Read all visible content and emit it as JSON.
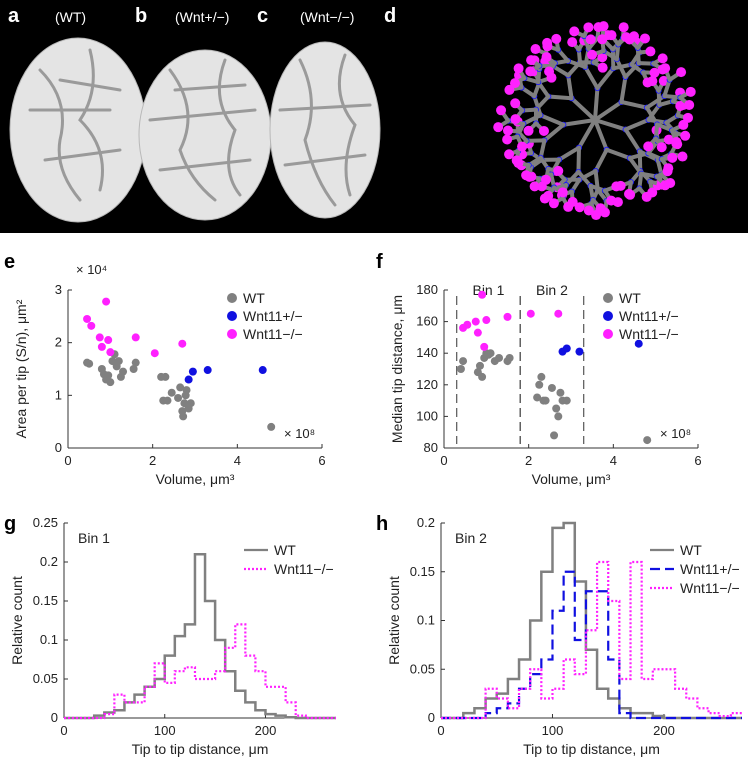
{
  "panel_labels": {
    "a": "a",
    "b": "b",
    "c": "c",
    "d": "d",
    "e": "e",
    "f": "f",
    "g": "g",
    "h": "h"
  },
  "top_images": {
    "a": "(WT)",
    "b": "(Wnt+/−)",
    "c": "(Wnt−/−)"
  },
  "colors": {
    "wt": "#808080",
    "het": "#1010e0",
    "ko": "#ff20ff",
    "tree": "#808080",
    "tip": "#ff22ff",
    "branch": "#1a1aff",
    "image_bg": "#000000",
    "kidney": "#e8e8e8"
  },
  "chart_data": [
    {
      "id": "e",
      "type": "scatter",
      "xlabel": "Volume, μm³",
      "ylabel": "Area per tip (S/n), μm²",
      "x_multiplier": "× 10⁸",
      "y_multiplier": "× 10⁴",
      "xlim": [
        0,
        6
      ],
      "ylim": [
        0,
        3
      ],
      "xticks": [
        "0",
        "2",
        "4",
        "6"
      ],
      "yticks": [
        "0",
        "1",
        "2",
        "3"
      ],
      "legend": [
        "WT",
        "Wnt11+/−",
        "Wnt11−/−"
      ],
      "legend_position": "top-right",
      "series": [
        {
          "name": "WT",
          "color": "#808080",
          "points": [
            [
              0.45,
              1.62
            ],
            [
              0.5,
              1.6
            ],
            [
              0.8,
              1.5
            ],
            [
              0.85,
              1.4
            ],
            [
              0.9,
              1.3
            ],
            [
              0.95,
              1.38
            ],
            [
              1.0,
              1.25
            ],
            [
              1.05,
              1.65
            ],
            [
              1.1,
              1.78
            ],
            [
              1.15,
              1.55
            ],
            [
              1.2,
              1.65
            ],
            [
              1.25,
              1.35
            ],
            [
              1.3,
              1.45
            ],
            [
              1.55,
              1.5
            ],
            [
              1.6,
              1.62
            ],
            [
              2.2,
              1.35
            ],
            [
              2.25,
              0.9
            ],
            [
              2.3,
              1.35
            ],
            [
              2.35,
              0.9
            ],
            [
              2.45,
              1.05
            ],
            [
              2.6,
              0.95
            ],
            [
              2.65,
              1.15
            ],
            [
              2.7,
              0.7
            ],
            [
              2.72,
              0.6
            ],
            [
              2.75,
              0.85
            ],
            [
              2.78,
              1.0
            ],
            [
              2.8,
              1.1
            ],
            [
              2.85,
              0.75
            ],
            [
              2.9,
              0.85
            ],
            [
              4.8,
              0.4
            ]
          ]
        },
        {
          "name": "Wnt11+/−",
          "color": "#1010e0",
          "points": [
            [
              2.85,
              1.3
            ],
            [
              2.95,
              1.45
            ],
            [
              3.3,
              1.48
            ],
            [
              4.6,
              1.48
            ]
          ]
        },
        {
          "name": "Wnt11−/−",
          "color": "#ff20ff",
          "points": [
            [
              0.45,
              2.45
            ],
            [
              0.55,
              2.32
            ],
            [
              0.75,
              2.1
            ],
            [
              0.8,
              1.92
            ],
            [
              0.9,
              2.78
            ],
            [
              0.95,
              2.05
            ],
            [
              1.0,
              1.82
            ],
            [
              1.6,
              2.1
            ],
            [
              2.05,
              1.8
            ],
            [
              2.7,
              1.98
            ]
          ]
        }
      ]
    },
    {
      "id": "f",
      "type": "scatter",
      "xlabel": "Volume, μm³",
      "ylabel": "Median tip distance, μm",
      "x_multiplier": "× 10⁸",
      "xlim": [
        0,
        6
      ],
      "ylim": [
        80,
        180
      ],
      "xticks": [
        "0",
        "2",
        "4",
        "6"
      ],
      "yticks": [
        "80",
        "100",
        "120",
        "140",
        "160",
        "180"
      ],
      "legend": [
        "WT",
        "Wnt11+/−",
        "Wnt11−/−"
      ],
      "legend_position": "top-right",
      "bins": [
        {
          "label": "Bin 1",
          "x_start": 0.3,
          "x_end": 1.8
        },
        {
          "label": "Bin 2",
          "x_start": 1.8,
          "x_end": 3.3
        }
      ],
      "series": [
        {
          "name": "WT",
          "color": "#808080",
          "points": [
            [
              0.4,
              130
            ],
            [
              0.45,
              135
            ],
            [
              0.8,
              128
            ],
            [
              0.85,
              132
            ],
            [
              0.9,
              125
            ],
            [
              0.95,
              137
            ],
            [
              1.0,
              140
            ],
            [
              1.05,
              139
            ],
            [
              1.1,
              140
            ],
            [
              1.2,
              135
            ],
            [
              1.3,
              137
            ],
            [
              1.5,
              135
            ],
            [
              1.55,
              137
            ],
            [
              2.2,
              112
            ],
            [
              2.25,
              120
            ],
            [
              2.3,
              125
            ],
            [
              2.35,
              110
            ],
            [
              2.4,
              110
            ],
            [
              2.55,
              118
            ],
            [
              2.6,
              88
            ],
            [
              2.65,
              105
            ],
            [
              2.7,
              100
            ],
            [
              2.75,
              115
            ],
            [
              2.8,
              110
            ],
            [
              2.9,
              110
            ],
            [
              4.8,
              85
            ]
          ]
        },
        {
          "name": "Wnt11+/−",
          "color": "#1010e0",
          "points": [
            [
              2.8,
              141
            ],
            [
              2.9,
              143
            ],
            [
              3.2,
              141
            ],
            [
              4.6,
              146
            ]
          ]
        },
        {
          "name": "Wnt11−/−",
          "color": "#ff20ff",
          "points": [
            [
              0.45,
              156
            ],
            [
              0.55,
              158
            ],
            [
              0.75,
              160
            ],
            [
              0.8,
              153
            ],
            [
              0.9,
              177
            ],
            [
              0.95,
              144
            ],
            [
              1.0,
              161
            ],
            [
              1.5,
              163
            ],
            [
              2.05,
              165
            ],
            [
              2.7,
              165
            ]
          ]
        }
      ]
    },
    {
      "id": "g",
      "type": "line",
      "style": "step",
      "xlabel": "Tip to tip distance, μm",
      "ylabel": "Relative count",
      "xlim": [
        0,
        270
      ],
      "ylim": [
        0,
        0.25
      ],
      "xticks": [
        "0",
        "100",
        "200"
      ],
      "yticks": [
        "0",
        "0.05",
        "0.1",
        "0.15",
        "0.2",
        "0.25"
      ],
      "annotation": "Bin 1",
      "legend": [
        "WT",
        "Wnt11−/−"
      ],
      "legend_position": "top-right",
      "bin_edges": [
        0,
        10,
        20,
        30,
        40,
        50,
        60,
        70,
        80,
        90,
        100,
        110,
        120,
        130,
        140,
        150,
        160,
        170,
        180,
        190,
        200,
        210,
        220,
        230,
        240,
        250,
        260,
        270
      ],
      "series": [
        {
          "name": "WT",
          "color": "#808080",
          "dash": "solid",
          "values": [
            0,
            0,
            0,
            0.003,
            0.007,
            0.01,
            0.02,
            0.03,
            0.04,
            0.05,
            0.08,
            0.105,
            0.12,
            0.21,
            0.15,
            0.1,
            0.06,
            0.035,
            0.02,
            0.01,
            0.005,
            0.003,
            0.001,
            0,
            0,
            0,
            0
          ]
        },
        {
          "name": "Wnt11−/−",
          "color": "#ff20ff",
          "dash": "dotted",
          "values": [
            0,
            0,
            0,
            0,
            0.005,
            0.03,
            0.02,
            0.02,
            0.04,
            0.07,
            0.045,
            0.06,
            0.065,
            0.05,
            0.05,
            0.06,
            0.09,
            0.12,
            0.08,
            0.06,
            0.04,
            0.04,
            0.02,
            0.003,
            0,
            0,
            0
          ]
        }
      ]
    },
    {
      "id": "h",
      "type": "line",
      "style": "step",
      "xlabel": "Tip to tip distance, μm",
      "ylabel": "Relative count",
      "xlim": [
        0,
        270
      ],
      "ylim": [
        0,
        0.2
      ],
      "xticks": [
        "0",
        "100",
        "200"
      ],
      "yticks": [
        "0",
        "0.05",
        "0.1",
        "0.15",
        "0.2"
      ],
      "annotation": "Bin 2",
      "legend": [
        "WT",
        "Wnt11+/−",
        "Wnt11−/−"
      ],
      "legend_position": "top-right",
      "bin_edges": [
        0,
        10,
        20,
        30,
        40,
        50,
        60,
        70,
        80,
        90,
        100,
        110,
        120,
        130,
        140,
        150,
        160,
        170,
        180,
        190,
        200,
        210,
        220,
        230,
        240,
        250,
        260,
        270
      ],
      "series": [
        {
          "name": "WT",
          "color": "#808080",
          "dash": "solid",
          "values": [
            0,
            0,
            0.005,
            0.01,
            0.02,
            0.025,
            0.04,
            0.06,
            0.1,
            0.15,
            0.195,
            0.2,
            0.14,
            0.07,
            0.03,
            0.02,
            0.01,
            0.005,
            0.005,
            0.002,
            0,
            0,
            0,
            0,
            0,
            0,
            0
          ]
        },
        {
          "name": "Wnt11+/−",
          "color": "#1010e0",
          "dash": "dashed",
          "values": [
            0,
            0,
            0,
            0,
            0.005,
            0.01,
            0.015,
            0.03,
            0.045,
            0.06,
            0.11,
            0.15,
            0.08,
            0.13,
            0.13,
            0.06,
            0.005,
            0,
            0,
            0,
            0,
            0,
            0,
            0,
            0,
            0,
            0
          ]
        },
        {
          "name": "Wnt11−/−",
          "color": "#ff20ff",
          "dash": "dotted",
          "values": [
            0,
            0,
            0,
            0,
            0.03,
            0.02,
            0.01,
            0.03,
            0.05,
            0.02,
            0.03,
            0.06,
            0.045,
            0.09,
            0.16,
            0.12,
            0.04,
            0.16,
            0.04,
            0.05,
            0.05,
            0.03,
            0.02,
            0.01,
            0.005,
            0.002,
            0.005
          ]
        }
      ]
    }
  ]
}
